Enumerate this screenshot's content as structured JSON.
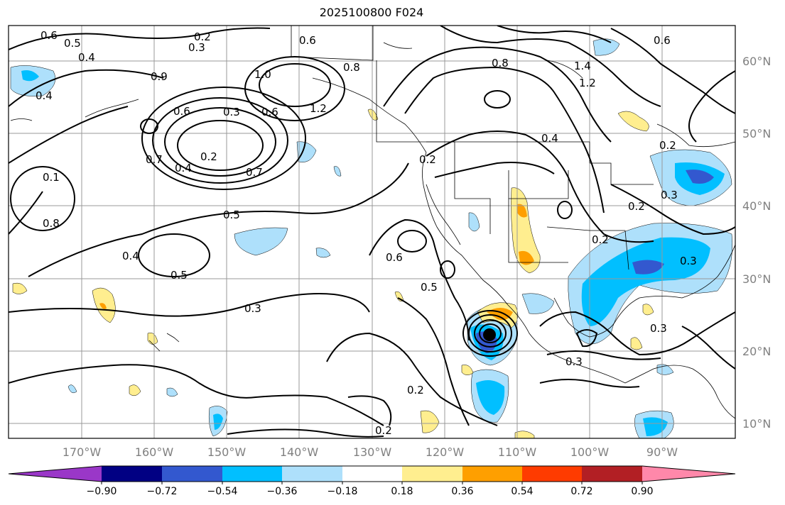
{
  "title": "2025100800 F024",
  "map": {
    "lon_labels": [
      "170°W",
      "160°W",
      "150°W",
      "140°W",
      "130°W",
      "120°W",
      "110°W",
      "100°W",
      "90°W"
    ],
    "lat_labels": [
      "60°N",
      "50°N",
      "40°N",
      "30°N",
      "20°N",
      "10°N"
    ],
    "contour_labels": [
      "0.6",
      "0.5",
      "0.4",
      "0.4",
      "0.2",
      "0.3",
      "0.6",
      "0.9",
      "1.0",
      "0.3",
      "0.6",
      "0.2",
      "0.7",
      "0.4",
      "1.2",
      "0.8",
      "0.6",
      "0.8",
      "1.4",
      "1.2",
      "0.4",
      "0.2",
      "0.5",
      "0.7",
      "0.1",
      "0.8",
      "0.4",
      "0.5",
      "0.3",
      "0.6",
      "0.5",
      "0.2",
      "0.2",
      "0.3",
      "0.2",
      "0.3",
      "0.3",
      "0.2",
      "0.2",
      "0.6",
      "0.3"
    ],
    "center_marker": "storm-center"
  },
  "colorbar": {
    "tick_labels": [
      "−0.90",
      "−0.72",
      "−0.54",
      "−0.36",
      "−0.18",
      "0.18",
      "0.36",
      "0.54",
      "0.72",
      "0.90"
    ],
    "colors": [
      "#9a37c8",
      "#010083",
      "#3358cf",
      "#01bfff",
      "#aee0fb",
      "#ffffff",
      "#ffee8f",
      "#fe9f00",
      "#fe3b00",
      "#b21f24",
      "#ff88aa"
    ]
  }
}
